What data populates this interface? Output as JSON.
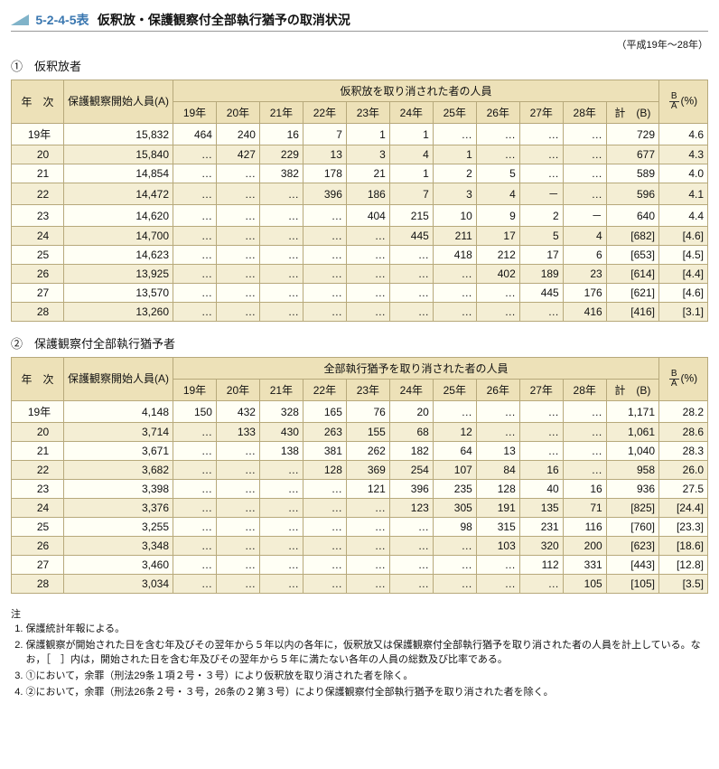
{
  "colors": {
    "triangle": "#80b3c9",
    "title_code": "#3a77b0",
    "header_bg": "#ede1b8",
    "row_even_bg": "#fffff5",
    "row_odd_bg": "#f4eed4",
    "border": "#b7a97b"
  },
  "title": {
    "code": "5-2-4-5表",
    "text": "仮釈放・保護観察付全部執行猶予の取消状況"
  },
  "range": "（平成19年～28年）",
  "sections": [
    {
      "label": "①　仮釈放者",
      "group_header": "仮釈放を取り消された者の人員",
      "year_col": "年　次",
      "A_col": "保護観察開始人員(A)",
      "year_cols": [
        "19年",
        "20年",
        "21年",
        "22年",
        "23年",
        "24年",
        "25年",
        "26年",
        "27年",
        "28年"
      ],
      "total_col": "計　(B)",
      "ratio_col": "(%)",
      "frac": {
        "top": "B",
        "bot": "A"
      },
      "rows": [
        {
          "y": "19年",
          "A": "15,832",
          "c": [
            "464",
            "240",
            "16",
            "7",
            "1",
            "1",
            "…",
            "…",
            "…",
            "…"
          ],
          "B": "729",
          "R": "4.6"
        },
        {
          "y": "20",
          "A": "15,840",
          "c": [
            "…",
            "427",
            "229",
            "13",
            "3",
            "4",
            "1",
            "…",
            "…",
            "…"
          ],
          "B": "677",
          "R": "4.3"
        },
        {
          "y": "21",
          "A": "14,854",
          "c": [
            "…",
            "…",
            "382",
            "178",
            "21",
            "1",
            "2",
            "5",
            "…",
            "…"
          ],
          "B": "589",
          "R": "4.0"
        },
        {
          "y": "22",
          "A": "14,472",
          "c": [
            "…",
            "…",
            "…",
            "396",
            "186",
            "7",
            "3",
            "4",
            "－",
            "…"
          ],
          "B": "596",
          "R": "4.1"
        },
        {
          "y": "23",
          "A": "14,620",
          "c": [
            "…",
            "…",
            "…",
            "…",
            "404",
            "215",
            "10",
            "9",
            "2",
            "－"
          ],
          "B": "640",
          "R": "4.4"
        },
        {
          "y": "24",
          "A": "14,700",
          "c": [
            "…",
            "…",
            "…",
            "…",
            "…",
            "445",
            "211",
            "17",
            "5",
            "4"
          ],
          "B": "[682]",
          "R": "[4.6]"
        },
        {
          "y": "25",
          "A": "14,623",
          "c": [
            "…",
            "…",
            "…",
            "…",
            "…",
            "…",
            "418",
            "212",
            "17",
            "6"
          ],
          "B": "[653]",
          "R": "[4.5]"
        },
        {
          "y": "26",
          "A": "13,925",
          "c": [
            "…",
            "…",
            "…",
            "…",
            "…",
            "…",
            "…",
            "402",
            "189",
            "23"
          ],
          "B": "[614]",
          "R": "[4.4]"
        },
        {
          "y": "27",
          "A": "13,570",
          "c": [
            "…",
            "…",
            "…",
            "…",
            "…",
            "…",
            "…",
            "…",
            "445",
            "176"
          ],
          "B": "[621]",
          "R": "[4.6]"
        },
        {
          "y": "28",
          "A": "13,260",
          "c": [
            "…",
            "…",
            "…",
            "…",
            "…",
            "…",
            "…",
            "…",
            "…",
            "416"
          ],
          "B": "[416]",
          "R": "[3.1]"
        }
      ]
    },
    {
      "label": "②　保護観察付全部執行猶予者",
      "group_header": "全部執行猶予を取り消された者の人員",
      "year_col": "年　次",
      "A_col": "保護観察開始人員(A)",
      "year_cols": [
        "19年",
        "20年",
        "21年",
        "22年",
        "23年",
        "24年",
        "25年",
        "26年",
        "27年",
        "28年"
      ],
      "total_col": "計　(B)",
      "ratio_col": "(%)",
      "frac": {
        "top": "B",
        "bot": "A"
      },
      "rows": [
        {
          "y": "19年",
          "A": "4,148",
          "c": [
            "150",
            "432",
            "328",
            "165",
            "76",
            "20",
            "…",
            "…",
            "…",
            "…"
          ],
          "B": "1,171",
          "R": "28.2"
        },
        {
          "y": "20",
          "A": "3,714",
          "c": [
            "…",
            "133",
            "430",
            "263",
            "155",
            "68",
            "12",
            "…",
            "…",
            "…"
          ],
          "B": "1,061",
          "R": "28.6"
        },
        {
          "y": "21",
          "A": "3,671",
          "c": [
            "…",
            "…",
            "138",
            "381",
            "262",
            "182",
            "64",
            "13",
            "…",
            "…"
          ],
          "B": "1,040",
          "R": "28.3"
        },
        {
          "y": "22",
          "A": "3,682",
          "c": [
            "…",
            "…",
            "…",
            "128",
            "369",
            "254",
            "107",
            "84",
            "16",
            "…"
          ],
          "B": "958",
          "R": "26.0"
        },
        {
          "y": "23",
          "A": "3,398",
          "c": [
            "…",
            "…",
            "…",
            "…",
            "121",
            "396",
            "235",
            "128",
            "40",
            "16"
          ],
          "B": "936",
          "R": "27.5"
        },
        {
          "y": "24",
          "A": "3,376",
          "c": [
            "…",
            "…",
            "…",
            "…",
            "…",
            "123",
            "305",
            "191",
            "135",
            "71"
          ],
          "B": "[825]",
          "R": "[24.4]"
        },
        {
          "y": "25",
          "A": "3,255",
          "c": [
            "…",
            "…",
            "…",
            "…",
            "…",
            "…",
            "98",
            "315",
            "231",
            "116"
          ],
          "B": "[760]",
          "R": "[23.3]"
        },
        {
          "y": "26",
          "A": "3,348",
          "c": [
            "…",
            "…",
            "…",
            "…",
            "…",
            "…",
            "…",
            "103",
            "320",
            "200"
          ],
          "B": "[623]",
          "R": "[18.6]"
        },
        {
          "y": "27",
          "A": "3,460",
          "c": [
            "…",
            "…",
            "…",
            "…",
            "…",
            "…",
            "…",
            "…",
            "112",
            "331"
          ],
          "B": "[443]",
          "R": "[12.8]"
        },
        {
          "y": "28",
          "A": "3,034",
          "c": [
            "…",
            "…",
            "…",
            "…",
            "…",
            "…",
            "…",
            "…",
            "…",
            "105"
          ],
          "B": "[105]",
          "R": "[3.5]"
        }
      ]
    }
  ],
  "notes": {
    "lead": "注",
    "items": [
      "保護統計年報による。",
      "保護観察が開始された日を含む年及びその翌年から５年以内の各年に，仮釈放又は保護観察付全部執行猶予を取り消された者の人員を計上している。なお，［　］内は，開始された日を含む年及びその翌年から５年に満たない各年の人員の総数及び比率である。",
      "①において，余罪（刑法29条１項２号・３号）により仮釈放を取り消された者を除く。",
      "②において，余罪（刑法26条２号・３号，26条の２第３号）により保護観察付全部執行猶予を取り消された者を除く。"
    ]
  }
}
